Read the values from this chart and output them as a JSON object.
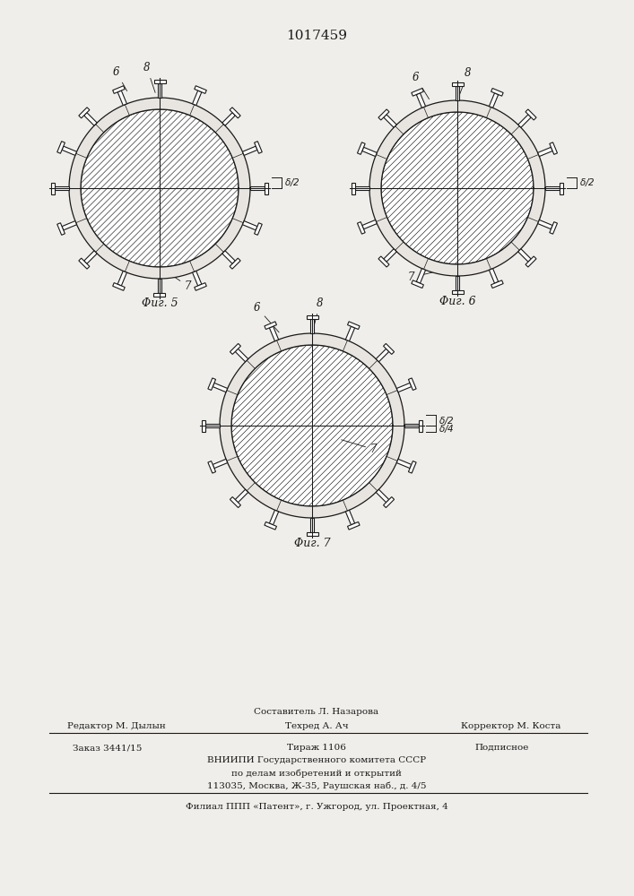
{
  "title": "1017459",
  "bg_color": "#f0eeea",
  "fig1_label": "Φиг. 5",
  "fig2_label": "Φиг. 6",
  "fig3_label": "Φиг. 7",
  "line_color": "#1a1a1a",
  "hatch_lw": 0.5,
  "ring_fill": "#e0ddd8",
  "circle_fill": "#ffffff",
  "bottom_line1": "Составитель Л. Назарова",
  "bottom_line2a": "Редактор М. Дылын",
  "bottom_line2b": "Техред А. Ач",
  "bottom_line2c": "Корректор М. Коста",
  "bottom_line3a": "Заказ 3441/15",
  "bottom_line3b": "Тираж 1106",
  "bottom_line3c": "Подписное",
  "bottom_line4": "ВНИИПИ Государственного комитета СССР",
  "bottom_line5": "по делам изобретений и открытий",
  "bottom_line6": "113035, Москва, Ж-35, Раушская наб., д. 4/5",
  "bottom_line7": "Филиал ППП «Патент», г. Ужгород, ул. Проектная, 4"
}
